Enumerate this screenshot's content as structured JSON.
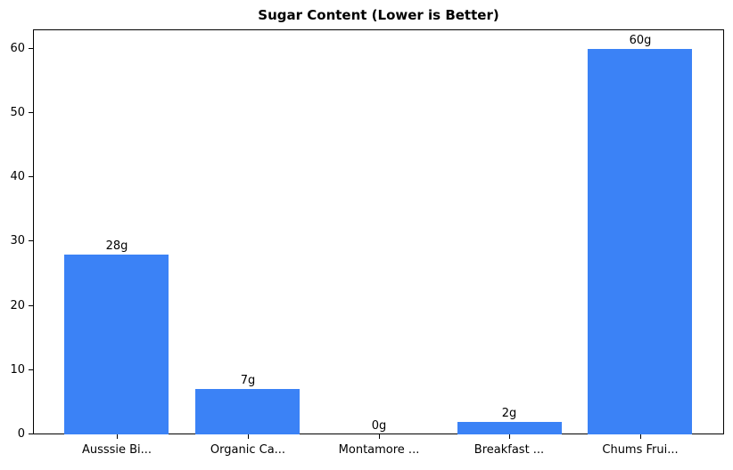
{
  "chart_data": {
    "type": "bar",
    "title": "Sugar Content (Lower is Better)",
    "categories": [
      "Ausssie Bi...",
      "Organic Ca...",
      "Montamore ...",
      "Breakfast ...",
      "Chums Frui..."
    ],
    "values": [
      28,
      7,
      0,
      2,
      60
    ],
    "bar_labels": [
      "28g",
      "7g",
      "0g",
      "2g",
      "60g"
    ],
    "xlabel": "",
    "ylabel": "",
    "ylim": [
      0,
      63
    ],
    "yticks": [
      0,
      10,
      20,
      30,
      40,
      50,
      60
    ],
    "bar_width_fraction": 0.8,
    "grid": false,
    "legend": "none",
    "bar_color": "#3b82f6",
    "axis_color": "#000000",
    "text_color": "#000000",
    "background_color": "#ffffff"
  }
}
